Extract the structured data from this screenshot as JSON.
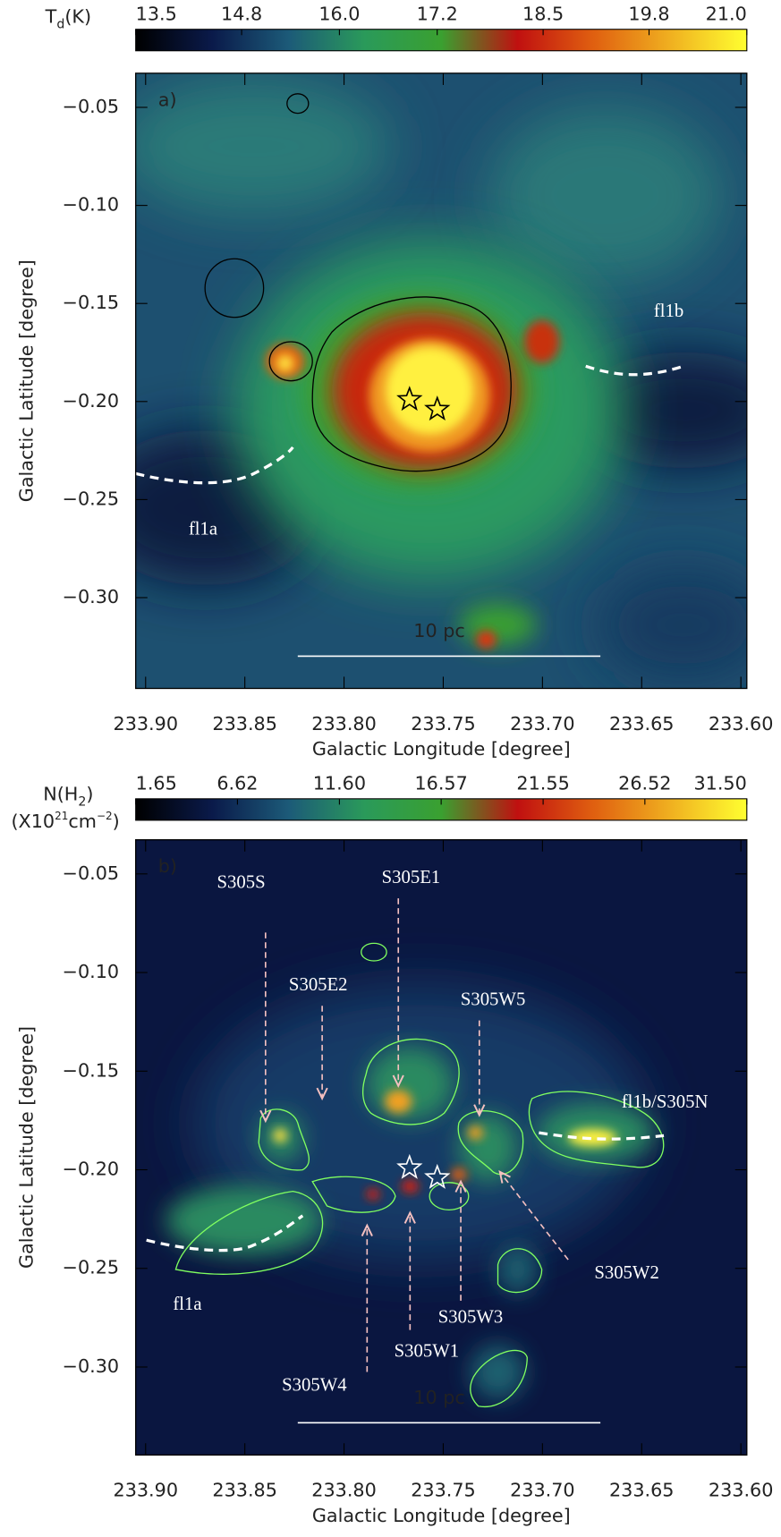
{
  "chart_data": [
    {
      "type": "image",
      "panel_label": "a)",
      "colorbar_label": [
        "T",
        "d",
        "(K)"
      ],
      "colormap": [
        "#000000",
        "#0a1a4a",
        "#1c5a78",
        "#2a9a5a",
        "#3aa030",
        "#c01010",
        "#e06010",
        "#f0b020",
        "#ffff30"
      ],
      "clim": [
        13.5,
        21.0
      ],
      "cticks": [
        13.5,
        14.8,
        {
          "value": 16.0,
          "label": "16.0"
        },
        17.2,
        18.5,
        19.8,
        {
          "value": 21.0,
          "label": "21.0"
        }
      ],
      "xlabel": "Galactic Longitude [degree]",
      "ylabel": "Galactic Latitude [degree]",
      "xlim": [
        233.905,
        233.597
      ],
      "ylim": [
        -0.3463,
        -0.0326
      ],
      "xticks": [
        {
          "value": 233.9,
          "label": "233.90"
        },
        233.85,
        {
          "value": 233.8,
          "label": "233.80"
        },
        233.75,
        {
          "value": 233.7,
          "label": "233.70"
        },
        233.65,
        {
          "value": 233.6,
          "label": "233.60"
        }
      ],
      "yticks": [
        {
          "value": -0.05,
          "label": "−0.05"
        },
        {
          "value": -0.1,
          "label": "−0.10"
        },
        {
          "value": -0.15,
          "label": "−0.15"
        },
        {
          "value": -0.2,
          "label": "−0.20"
        },
        {
          "value": -0.25,
          "label": "−0.25"
        },
        {
          "value": -0.3,
          "label": "−0.30"
        }
      ],
      "stars": {
        "x": [
          233.767,
          233.753
        ],
        "y": [
          -0.199,
          -0.204
        ]
      },
      "scale_bar": "10 pc",
      "annotations": [
        "fl1b",
        "fl1a"
      ]
    },
    {
      "type": "image",
      "panel_label": "b)",
      "colorbar_label": [
        "N(H",
        "2",
        ")"
      ],
      "colorbar_unit": [
        "(X10",
        "21",
        "cm",
        "−2",
        ")"
      ],
      "colormap": [
        "#000000",
        "#0a1a4a",
        "#1c5a78",
        "#2a9a5a",
        "#3aa030",
        "#c01010",
        "#e06010",
        "#f0b020",
        "#ffff30"
      ],
      "clim": [
        1.65,
        31.5
      ],
      "cticks": [
        1.65,
        6.62,
        {
          "value": 11.6,
          "label": "11.60"
        },
        16.57,
        21.55,
        26.52,
        {
          "value": 31.5,
          "label": "31.50"
        }
      ],
      "xlabel": "Galactic Longitude [degree]",
      "ylabel": "Galactic Latitude [degree]",
      "xlim": [
        233.905,
        233.597
      ],
      "ylim": [
        -0.3446,
        -0.0327
      ],
      "xticks": [
        {
          "value": 233.9,
          "label": "233.90"
        },
        233.85,
        {
          "value": 233.8,
          "label": "233.80"
        },
        233.75,
        {
          "value": 233.7,
          "label": "233.70"
        },
        233.65,
        {
          "value": 233.6,
          "label": "233.60"
        }
      ],
      "yticks": [
        {
          "value": -0.05,
          "label": "−0.05"
        },
        {
          "value": -0.1,
          "label": "−0.10"
        },
        {
          "value": -0.15,
          "label": "−0.15"
        },
        {
          "value": -0.2,
          "label": "−0.20"
        },
        {
          "value": -0.25,
          "label": "−0.25"
        },
        {
          "value": -0.3,
          "label": "−0.30"
        }
      ],
      "stars": {
        "x": [
          233.767,
          233.753
        ],
        "y": [
          -0.199,
          -0.204
        ]
      },
      "scale_bar": "10 pc",
      "annotations": [
        "S305S",
        "S305E2",
        "S305E1",
        "S305W5",
        "fl1b/S305N",
        "S305W2",
        "S305W3",
        "S305W1",
        "S305W4",
        "fl1a"
      ]
    }
  ]
}
